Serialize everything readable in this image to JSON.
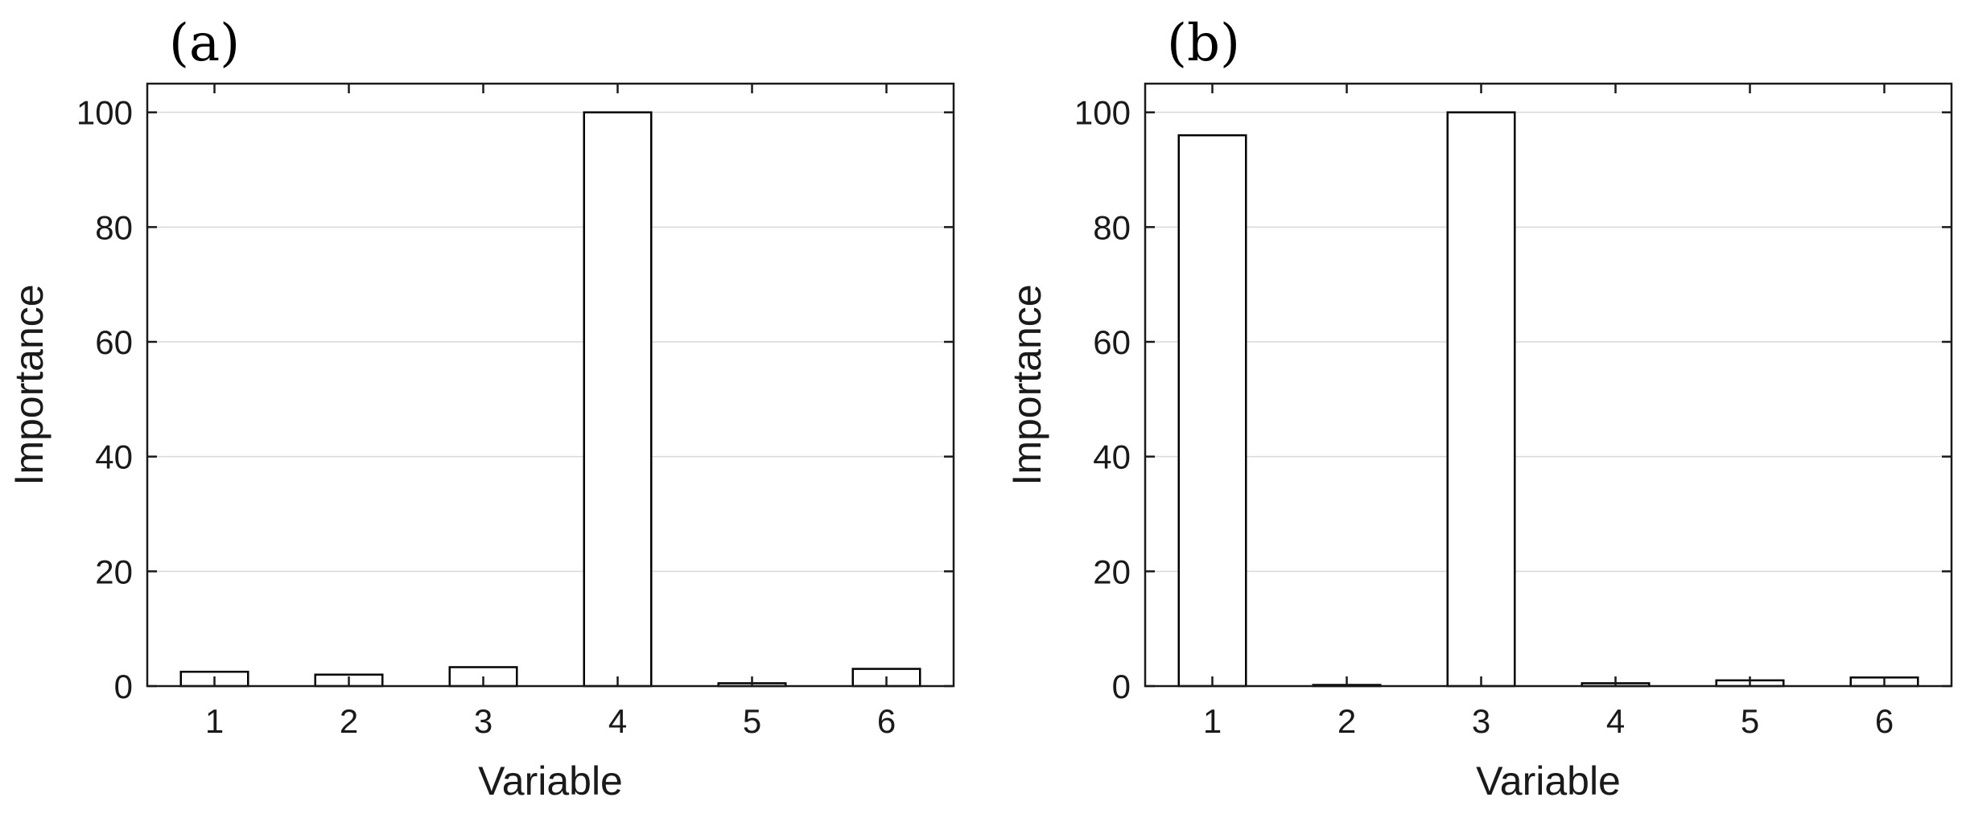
{
  "chart_data": [
    {
      "panel_label": "(a)",
      "type": "bar",
      "categories": [
        "1",
        "2",
        "3",
        "4",
        "5",
        "6"
      ],
      "values": [
        2.5,
        2.0,
        3.3,
        100,
        0.5,
        3.0
      ],
      "xlabel": "Variable",
      "ylabel": "Importance",
      "ylim": [
        0,
        105
      ],
      "yticks": [
        0,
        20,
        40,
        60,
        80,
        100
      ],
      "grid": "horizontal",
      "bar_color": "#ffffff",
      "edge_color": "#000000"
    },
    {
      "panel_label": "(b)",
      "type": "bar",
      "categories": [
        "1",
        "2",
        "3",
        "4",
        "5",
        "6"
      ],
      "values": [
        96,
        0.2,
        100,
        0.5,
        1.0,
        1.5
      ],
      "xlabel": "Variable",
      "ylabel": "Importance",
      "ylim": [
        0,
        105
      ],
      "yticks": [
        0,
        20,
        40,
        60,
        80,
        100
      ],
      "grid": "horizontal",
      "bar_color": "#ffffff",
      "edge_color": "#000000"
    }
  ]
}
